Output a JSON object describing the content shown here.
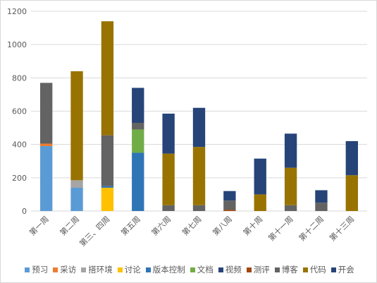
{
  "chart_data": {
    "type": "bar",
    "stacked": true,
    "categories": [
      "第一周",
      "第二周",
      "第三、四周",
      "第五周",
      "第六周",
      "第七周",
      "第八周",
      "第十周",
      "第十一周",
      "第十二周",
      "第十三周"
    ],
    "ylim": [
      0,
      1200
    ],
    "yticks": [
      0,
      200,
      400,
      600,
      800,
      1000,
      1200
    ],
    "grid": true,
    "legend_position": "bottom",
    "series": [
      {
        "name": "预习",
        "color": "#5B9BD5",
        "values": [
          390,
          140,
          0,
          0,
          0,
          0,
          0,
          0,
          0,
          0,
          0
        ]
      },
      {
        "name": "采访",
        "color": "#ED7D31",
        "values": [
          15,
          0,
          0,
          0,
          0,
          0,
          0,
          0,
          0,
          0,
          0
        ]
      },
      {
        "name": "搭环境",
        "color": "#A5A5A5",
        "values": [
          0,
          45,
          0,
          0,
          0,
          0,
          0,
          0,
          0,
          0,
          0
        ]
      },
      {
        "name": "讨论",
        "color": "#FFC000",
        "values": [
          0,
          0,
          140,
          0,
          0,
          0,
          0,
          0,
          0,
          0,
          0
        ]
      },
      {
        "name": "版本控制",
        "color": "#2E75B6",
        "values": [
          0,
          0,
          10,
          350,
          0,
          0,
          0,
          0,
          0,
          0,
          0
        ]
      },
      {
        "name": "文档",
        "color": "#70AD47",
        "values": [
          0,
          0,
          0,
          140,
          0,
          0,
          0,
          0,
          0,
          0,
          0
        ]
      },
      {
        "name": "视频",
        "color": "#264478",
        "values": [
          0,
          0,
          0,
          0,
          0,
          0,
          0,
          0,
          0,
          0,
          0
        ]
      },
      {
        "name": "测评",
        "color": "#9E480E",
        "values": [
          0,
          0,
          0,
          0,
          0,
          0,
          8,
          0,
          0,
          0,
          0
        ]
      },
      {
        "name": "博客",
        "color": "#636363",
        "values": [
          365,
          0,
          305,
          40,
          35,
          35,
          55,
          0,
          35,
          50,
          0
        ]
      },
      {
        "name": "代码",
        "color": "#997300",
        "values": [
          0,
          655,
          685,
          0,
          310,
          350,
          0,
          100,
          225,
          0,
          215
        ]
      },
      {
        "name": "开会",
        "color": "#264478",
        "values": [
          0,
          0,
          0,
          210,
          240,
          235,
          57,
          215,
          205,
          75,
          205
        ]
      }
    ]
  }
}
